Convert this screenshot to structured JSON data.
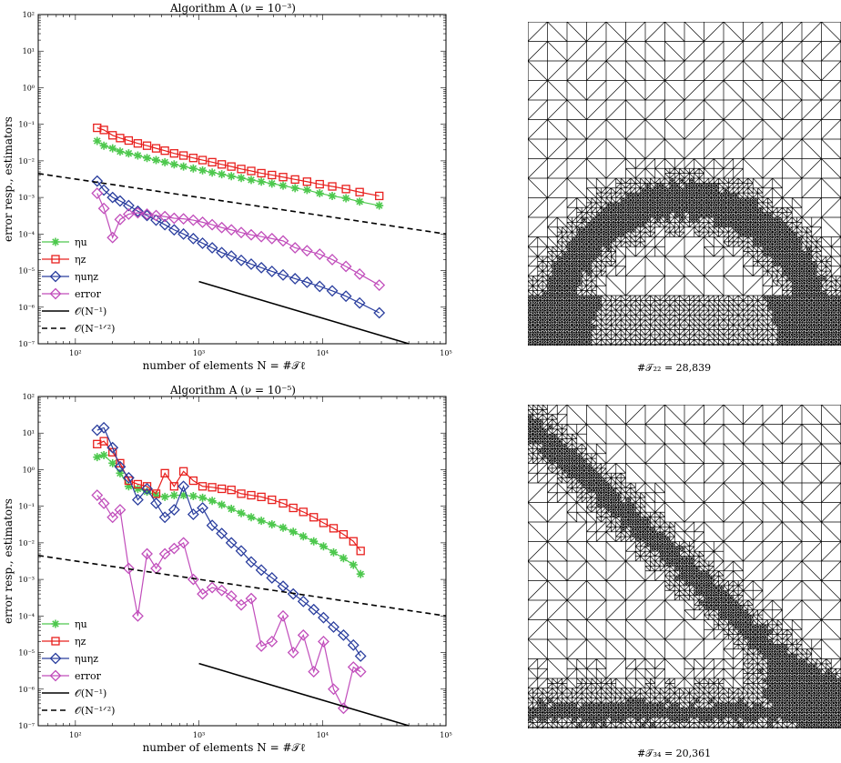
{
  "chart_data": [
    {
      "type": "line",
      "title": "Algorithm A (ν = 10⁻³)",
      "xlabel": "number of elements N = #𝒯ℓ",
      "ylabel": "error resp., estimators",
      "xscale": "log",
      "yscale": "log",
      "xlim": [
        50,
        100000
      ],
      "ylim": [
        1e-07,
        100
      ],
      "xticks": [
        "10²",
        "10³",
        "10⁴",
        "10⁵"
      ],
      "yticks": [
        "10⁻⁷",
        "10⁻⁶",
        "10⁻⁵",
        "10⁻⁴",
        "10⁻³",
        "10⁻²",
        "10⁻¹",
        "10⁰",
        "10¹",
        "10²"
      ],
      "legend_position": "bottom-left",
      "series": [
        {
          "name": "ηu",
          "color": "#4dc84d",
          "marker": "star",
          "dash": "",
          "x": [
            150,
            170,
            200,
            230,
            270,
            320,
            380,
            450,
            530,
            630,
            750,
            900,
            1070,
            1280,
            1530,
            1830,
            2200,
            2650,
            3200,
            3900,
            4800,
            6000,
            7500,
            9500,
            12000,
            15500,
            20000,
            28839
          ],
          "y": [
            0.035,
            0.026,
            0.022,
            0.018,
            0.016,
            0.014,
            0.012,
            0.0105,
            0.0092,
            0.008,
            0.007,
            0.0062,
            0.0055,
            0.0048,
            0.0043,
            0.0038,
            0.0034,
            0.003,
            0.0027,
            0.0024,
            0.0021,
            0.0018,
            0.0016,
            0.0013,
            0.0011,
            0.00095,
            0.00077,
            0.0006
          ]
        },
        {
          "name": "ηz",
          "color": "#e8201e",
          "marker": "square",
          "dash": "",
          "x": [
            150,
            170,
            200,
            230,
            270,
            320,
            380,
            450,
            530,
            630,
            750,
            900,
            1070,
            1280,
            1530,
            1830,
            2200,
            2650,
            3200,
            3900,
            4800,
            6000,
            7500,
            9500,
            12000,
            15500,
            20000,
            28839
          ],
          "y": [
            0.08,
            0.07,
            0.05,
            0.042,
            0.036,
            0.03,
            0.026,
            0.022,
            0.019,
            0.016,
            0.014,
            0.012,
            0.0105,
            0.0092,
            0.008,
            0.007,
            0.006,
            0.0053,
            0.0046,
            0.0041,
            0.0036,
            0.0031,
            0.0027,
            0.0023,
            0.002,
            0.0017,
            0.0014,
            0.0011
          ]
        },
        {
          "name": "ηuηz",
          "color": "#2a3e9e",
          "marker": "diamond",
          "dash": "",
          "x": [
            150,
            170,
            200,
            230,
            270,
            320,
            380,
            450,
            530,
            630,
            750,
            900,
            1070,
            1280,
            1530,
            1830,
            2200,
            2650,
            3200,
            3900,
            4800,
            6000,
            7500,
            9500,
            12000,
            15500,
            20000,
            28839
          ],
          "y": [
            0.0028,
            0.0016,
            0.001,
            0.0008,
            0.0006,
            0.00042,
            0.00032,
            0.00024,
            0.00018,
            0.00013,
            0.0001,
            7.5e-05,
            5.6e-05,
            4.2e-05,
            3.1e-05,
            2.5e-05,
            1.9e-05,
            1.5e-05,
            1.2e-05,
            9.5e-06,
            7.6e-06,
            6e-06,
            4.8e-06,
            3.7e-06,
            2.8e-06,
            2e-06,
            1.3e-06,
            7e-07
          ]
        },
        {
          "name": "error",
          "color": "#c14dbb",
          "marker": "diamond",
          "dash": "",
          "x": [
            150,
            170,
            200,
            230,
            270,
            320,
            380,
            450,
            530,
            630,
            750,
            900,
            1070,
            1280,
            1530,
            1830,
            2200,
            2650,
            3200,
            3900,
            4800,
            6000,
            7500,
            9500,
            12000,
            15500,
            20000,
            28839
          ],
          "y": [
            0.0013,
            0.0005,
            8e-05,
            0.00025,
            0.00035,
            0.00038,
            0.00035,
            0.00032,
            0.0003,
            0.00027,
            0.00026,
            0.00024,
            0.00021,
            0.00018,
            0.00015,
            0.00013,
            0.00011,
            9.5e-05,
            8.5e-05,
            7.5e-05,
            6.5e-05,
            4.2e-05,
            3.5e-05,
            2.8e-05,
            2e-05,
            1.3e-05,
            8e-06,
            4e-06
          ]
        },
        {
          "name": "𝒪(N⁻¹)",
          "color": "#000000",
          "marker": "none",
          "dash": "",
          "x": [
            1000,
            50000
          ],
          "y": [
            5e-06,
            1e-07
          ]
        },
        {
          "name": "𝒪(N⁻¹ᐟ²)",
          "color": "#000000",
          "marker": "none",
          "dash": "6,4",
          "x": [
            50,
            100000
          ],
          "y": [
            0.0045,
            0.0001
          ]
        }
      ]
    },
    {
      "type": "line",
      "title": "Algorithm A (ν = 10⁻⁵)",
      "xlabel": "number of elements N = #𝒯ℓ",
      "ylabel": "error resp., estimators",
      "xscale": "log",
      "yscale": "log",
      "xlim": [
        50,
        100000
      ],
      "ylim": [
        1e-07,
        100
      ],
      "xticks": [
        "10²",
        "10³",
        "10⁴",
        "10⁵"
      ],
      "yticks": [
        "10⁻⁷",
        "10⁻⁶",
        "10⁻⁵",
        "10⁻⁴",
        "10⁻³",
        "10⁻²",
        "10⁻¹",
        "10⁰",
        "10¹",
        "10²"
      ],
      "legend_position": "bottom-left",
      "series": [
        {
          "name": "ηu",
          "color": "#4dc84d",
          "marker": "star",
          "dash": "",
          "x": [
            150,
            170,
            200,
            230,
            270,
            320,
            380,
            450,
            530,
            630,
            750,
            900,
            1070,
            1280,
            1530,
            1830,
            2200,
            2650,
            3200,
            3900,
            4800,
            5800,
            7000,
            8500,
            10200,
            12300,
            14800,
            17800,
            20361
          ],
          "y": [
            2.2,
            2.5,
            1.5,
            0.8,
            0.35,
            0.3,
            0.25,
            0.2,
            0.18,
            0.2,
            0.2,
            0.19,
            0.17,
            0.14,
            0.11,
            0.085,
            0.065,
            0.05,
            0.04,
            0.032,
            0.026,
            0.02,
            0.015,
            0.011,
            0.008,
            0.0055,
            0.0038,
            0.0025,
            0.0014
          ]
        },
        {
          "name": "ηz",
          "color": "#e8201e",
          "marker": "square",
          "dash": "",
          "x": [
            150,
            170,
            200,
            230,
            270,
            320,
            380,
            450,
            530,
            630,
            750,
            900,
            1070,
            1280,
            1530,
            1830,
            2200,
            2650,
            3200,
            3900,
            4800,
            5800,
            7000,
            8500,
            10200,
            12300,
            14800,
            17800,
            20361
          ],
          "y": [
            5,
            6,
            3,
            1.5,
            0.5,
            0.4,
            0.35,
            0.22,
            0.8,
            0.35,
            0.9,
            0.5,
            0.35,
            0.33,
            0.3,
            0.28,
            0.22,
            0.2,
            0.18,
            0.15,
            0.12,
            0.09,
            0.07,
            0.05,
            0.035,
            0.025,
            0.017,
            0.011,
            0.006
          ]
        },
        {
          "name": "ηuηz",
          "color": "#2a3e9e",
          "marker": "diamond",
          "dash": "",
          "x": [
            150,
            170,
            200,
            230,
            270,
            320,
            380,
            450,
            530,
            630,
            750,
            900,
            1070,
            1280,
            1530,
            1830,
            2200,
            2650,
            3200,
            3900,
            4800,
            5800,
            7000,
            8500,
            10200,
            12300,
            14800,
            17800,
            20361
          ],
          "y": [
            12,
            14,
            4,
            1.2,
            0.6,
            0.15,
            0.3,
            0.12,
            0.05,
            0.08,
            0.35,
            0.06,
            0.09,
            0.03,
            0.018,
            0.01,
            0.006,
            0.003,
            0.0018,
            0.0011,
            0.00065,
            0.0004,
            0.00025,
            0.00015,
            9e-05,
            5e-05,
            3e-05,
            1.6e-05,
            8e-06
          ]
        },
        {
          "name": "error",
          "color": "#c14dbb",
          "marker": "diamond",
          "dash": "",
          "x": [
            150,
            170,
            200,
            230,
            270,
            320,
            380,
            450,
            530,
            630,
            750,
            900,
            1070,
            1280,
            1530,
            1830,
            2200,
            2650,
            3200,
            3900,
            4800,
            5800,
            7000,
            8500,
            10200,
            12300,
            14800,
            17800,
            20361
          ],
          "y": [
            0.2,
            0.12,
            0.05,
            0.08,
            0.002,
            0.0001,
            0.005,
            0.002,
            0.005,
            0.007,
            0.01,
            0.001,
            0.0004,
            0.0006,
            0.0005,
            0.00035,
            0.0002,
            0.0003,
            1.5e-05,
            2e-05,
            0.0001,
            1e-05,
            3e-05,
            3e-06,
            2e-05,
            1e-06,
            3e-07,
            4e-06,
            3e-06
          ]
        },
        {
          "name": "𝒪(N⁻¹)",
          "color": "#000000",
          "marker": "none",
          "dash": "",
          "x": [
            1000,
            50000
          ],
          "y": [
            5e-06,
            1e-07
          ]
        },
        {
          "name": "𝒪(N⁻¹ᐟ²)",
          "color": "#000000",
          "marker": "none",
          "dash": "6,4",
          "x": [
            50,
            100000
          ],
          "y": [
            0.0045,
            0.0001
          ]
        }
      ]
    }
  ],
  "meshes": [
    {
      "caption": "#𝒯₂₂ = 28,839"
    },
    {
      "caption": "#𝒯₃₄ = 20,361"
    }
  ]
}
